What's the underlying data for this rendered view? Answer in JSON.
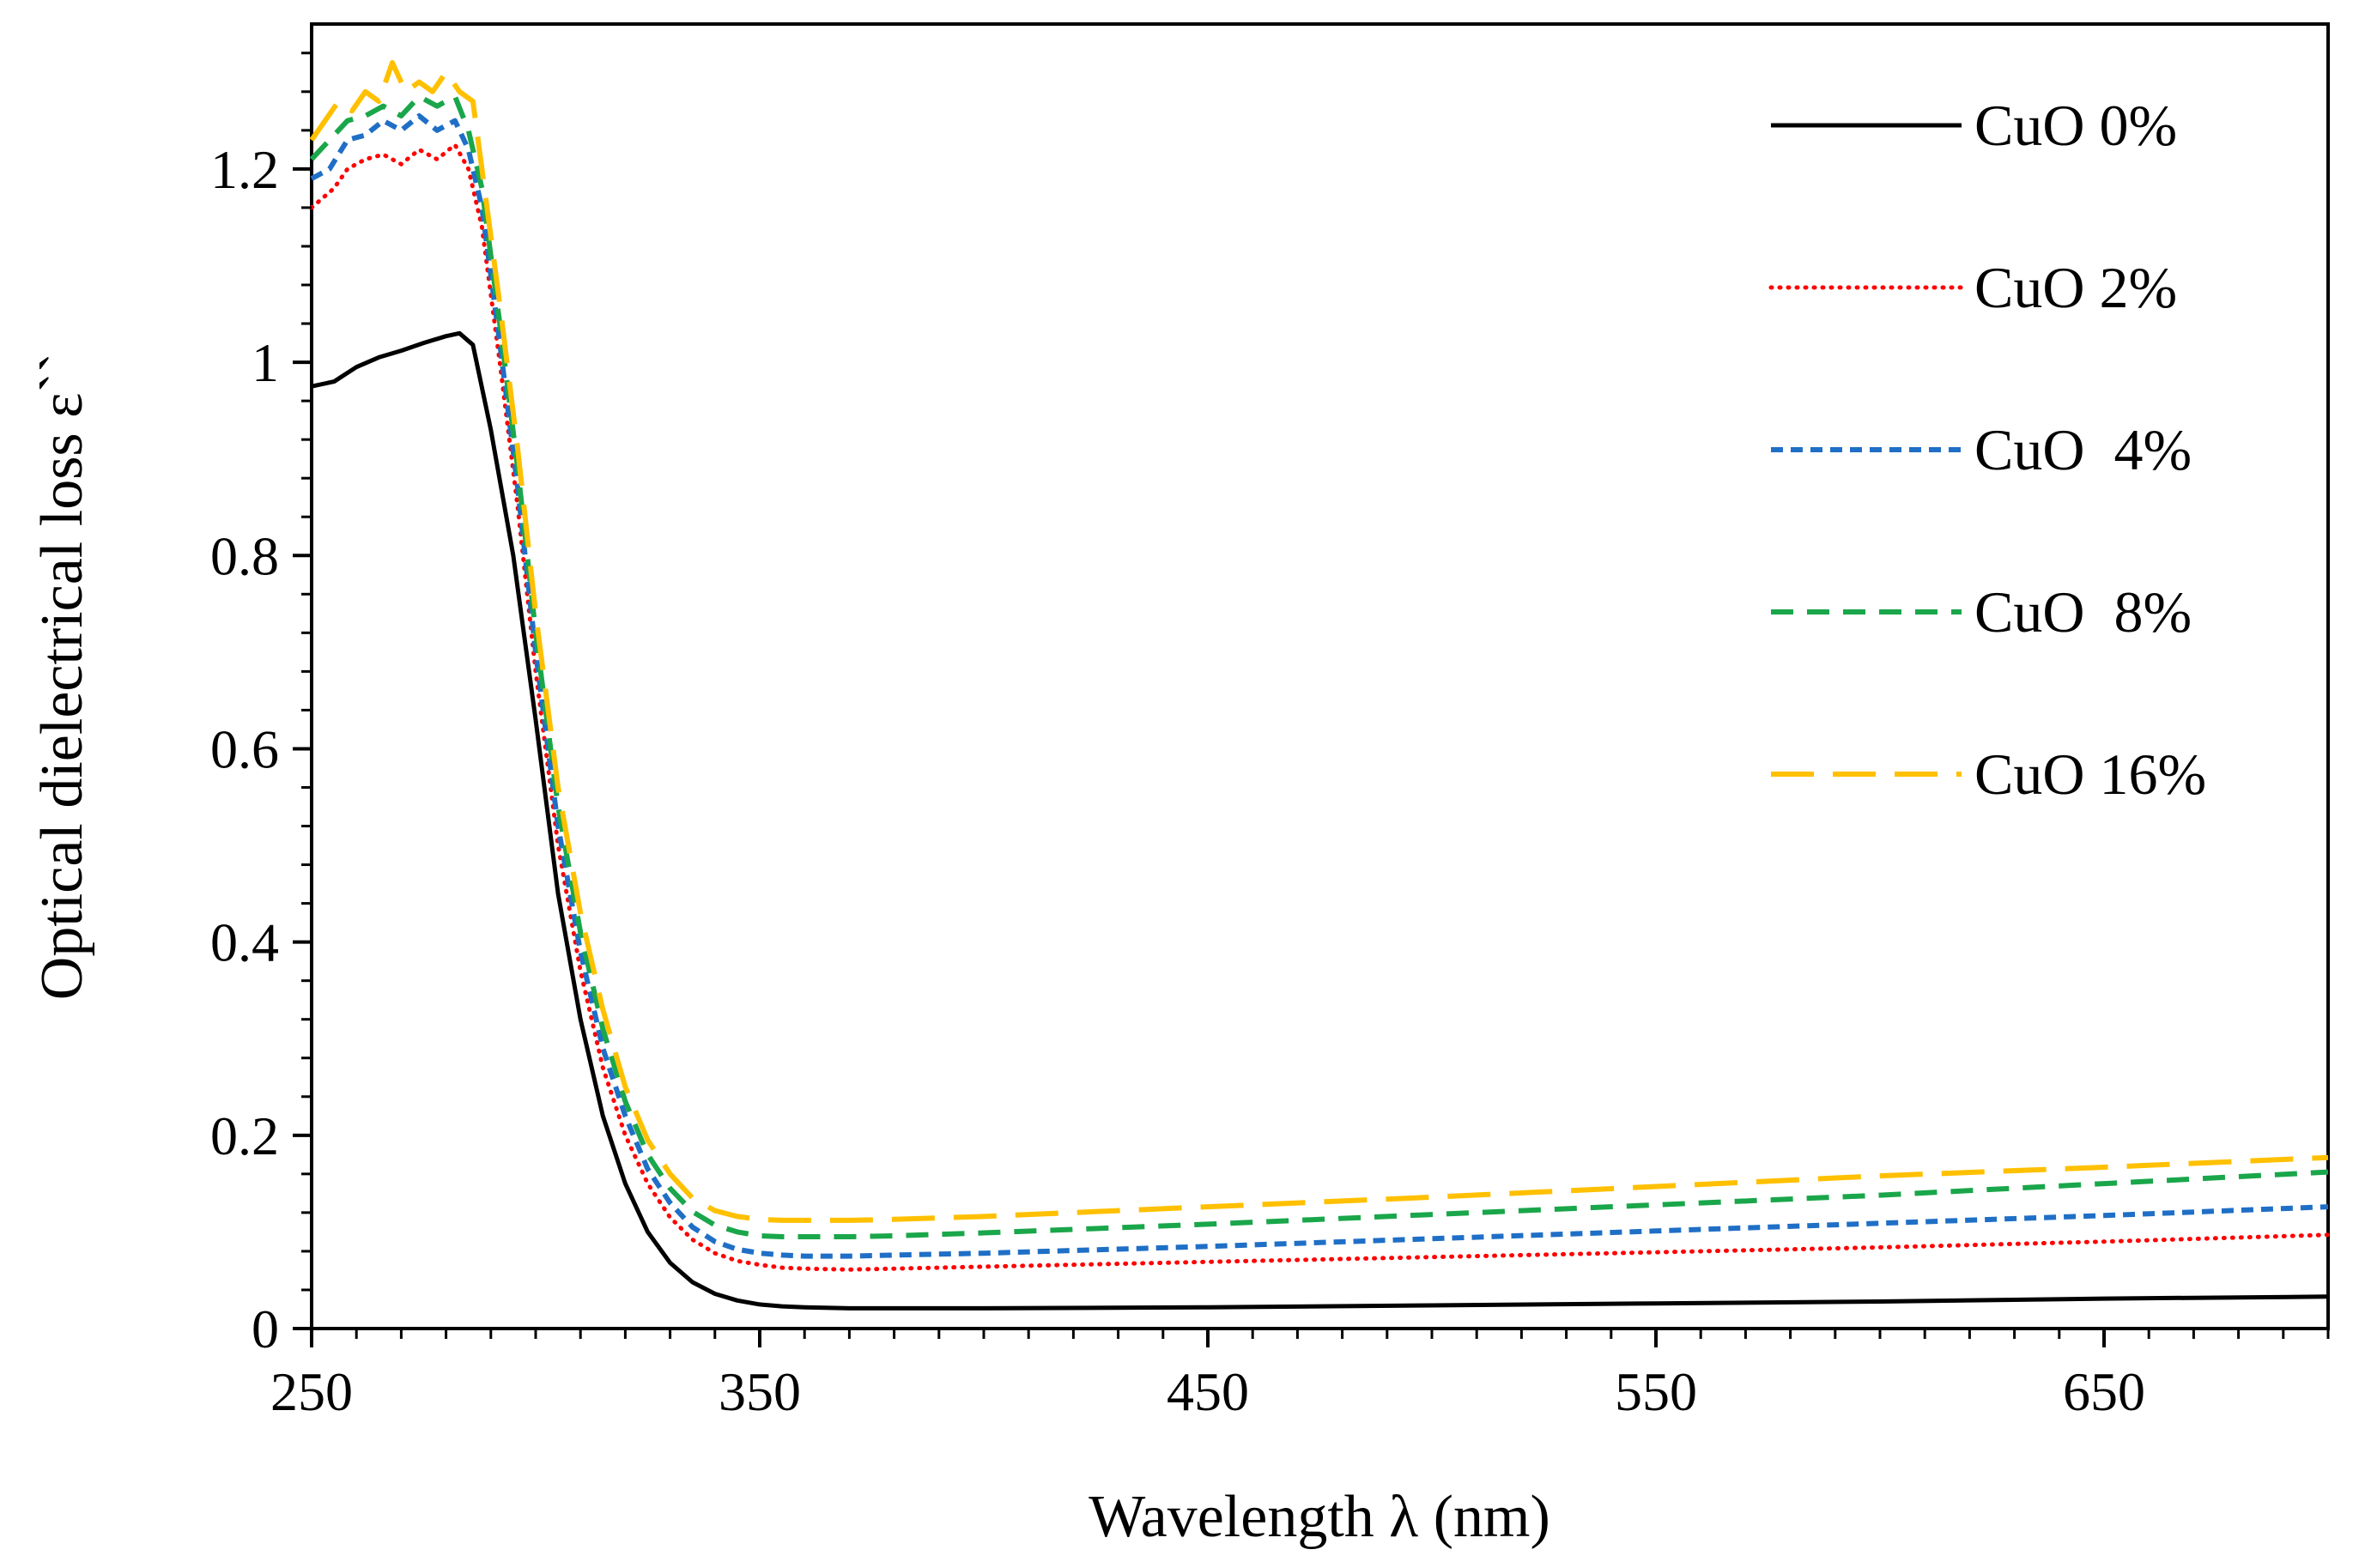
{
  "chart_data": {
    "type": "line",
    "title": "",
    "xlabel": "Wavelength λ (nm)",
    "ylabel": "Optical dielectrical loss   ε``",
    "xlim": [
      250,
      700
    ],
    "ylim": [
      0,
      1.35
    ],
    "xticks": [
      250,
      350,
      450,
      550,
      650
    ],
    "xtick_labels": [
      "250",
      "350",
      "450",
      "550",
      "650"
    ],
    "yticks": [
      0,
      0.2,
      0.4,
      0.6,
      0.8,
      1.0,
      1.2
    ],
    "ytick_labels": [
      "0",
      "0.2",
      "0.4",
      "0.6",
      "0.8",
      "1",
      "1.2"
    ],
    "grid": false,
    "legend_position": "top-right",
    "series": [
      {
        "name": "CuO 0%",
        "color": "#000000",
        "dash": "solid",
        "x": [
          250,
          255,
          260,
          265,
          270,
          275,
          280,
          283,
          286,
          290,
          295,
          300,
          305,
          310,
          315,
          320,
          325,
          330,
          335,
          340,
          345,
          350,
          355,
          360,
          370,
          380,
          400,
          450,
          500,
          550,
          600,
          650,
          700
        ],
        "y": [
          0.975,
          0.98,
          0.995,
          1.005,
          1.012,
          1.02,
          1.027,
          1.03,
          1.018,
          0.93,
          0.8,
          0.63,
          0.45,
          0.32,
          0.22,
          0.15,
          0.1,
          0.068,
          0.048,
          0.036,
          0.029,
          0.025,
          0.023,
          0.022,
          0.021,
          0.021,
          0.021,
          0.022,
          0.024,
          0.026,
          0.028,
          0.031,
          0.033
        ]
      },
      {
        "name": "CuO 2%",
        "color": "#ff0000",
        "dash": "dotted",
        "x": [
          250,
          255,
          258,
          262,
          266,
          270,
          274,
          278,
          282,
          285,
          288,
          292,
          296,
          300,
          305,
          310,
          315,
          320,
          325,
          330,
          335,
          340,
          345,
          350,
          355,
          360,
          370,
          380,
          400,
          450,
          500,
          550,
          600,
          650,
          700
        ],
        "y": [
          1.16,
          1.18,
          1.2,
          1.21,
          1.215,
          1.205,
          1.22,
          1.21,
          1.225,
          1.2,
          1.14,
          1.0,
          0.85,
          0.68,
          0.5,
          0.37,
          0.27,
          0.2,
          0.15,
          0.115,
          0.092,
          0.078,
          0.07,
          0.066,
          0.063,
          0.062,
          0.061,
          0.062,
          0.064,
          0.069,
          0.074,
          0.079,
          0.084,
          0.09,
          0.097
        ]
      },
      {
        "name": "CuO  4%",
        "color": "#1f6fc6",
        "dash": "dashed-short",
        "x": [
          250,
          254,
          258,
          262,
          266,
          270,
          274,
          278,
          282,
          285,
          288,
          292,
          296,
          300,
          305,
          310,
          315,
          320,
          325,
          330,
          335,
          340,
          345,
          350,
          355,
          360,
          370,
          380,
          400,
          450,
          500,
          550,
          600,
          650,
          700
        ],
        "y": [
          1.19,
          1.2,
          1.23,
          1.235,
          1.25,
          1.24,
          1.255,
          1.24,
          1.25,
          1.22,
          1.16,
          1.02,
          0.87,
          0.7,
          0.52,
          0.39,
          0.29,
          0.22,
          0.165,
          0.13,
          0.105,
          0.09,
          0.082,
          0.078,
          0.076,
          0.075,
          0.075,
          0.076,
          0.078,
          0.085,
          0.093,
          0.101,
          0.109,
          0.117,
          0.126
        ]
      },
      {
        "name": "CuO  8%",
        "color": "#1aa64a",
        "dash": "dashed",
        "x": [
          250,
          254,
          258,
          262,
          266,
          270,
          274,
          278,
          282,
          285,
          288,
          292,
          296,
          300,
          305,
          310,
          315,
          320,
          325,
          330,
          335,
          340,
          345,
          350,
          355,
          360,
          370,
          380,
          400,
          450,
          500,
          550,
          600,
          650,
          700
        ],
        "y": [
          1.21,
          1.23,
          1.25,
          1.255,
          1.265,
          1.255,
          1.275,
          1.265,
          1.275,
          1.24,
          1.18,
          1.04,
          0.89,
          0.72,
          0.54,
          0.41,
          0.31,
          0.235,
          0.18,
          0.145,
          0.121,
          0.107,
          0.1,
          0.096,
          0.095,
          0.095,
          0.095,
          0.096,
          0.099,
          0.108,
          0.118,
          0.128,
          0.138,
          0.15,
          0.162
        ]
      },
      {
        "name": "CuO 16%",
        "color": "#ffc000",
        "dash": "long-dash",
        "x": [
          250,
          253,
          256,
          259,
          262,
          265,
          268,
          271,
          274,
          277,
          280,
          283,
          286,
          288,
          292,
          296,
          300,
          305,
          310,
          315,
          320,
          325,
          330,
          335,
          340,
          345,
          350,
          355,
          360,
          370,
          380,
          400,
          450,
          500,
          550,
          600,
          650,
          700
        ],
        "y": [
          1.23,
          1.25,
          1.27,
          1.26,
          1.28,
          1.27,
          1.31,
          1.28,
          1.29,
          1.28,
          1.3,
          1.28,
          1.27,
          1.2,
          1.06,
          0.91,
          0.74,
          0.56,
          0.43,
          0.33,
          0.25,
          0.195,
          0.16,
          0.135,
          0.122,
          0.116,
          0.113,
          0.112,
          0.112,
          0.112,
          0.113,
          0.116,
          0.126,
          0.136,
          0.147,
          0.158,
          0.167,
          0.177
        ]
      }
    ]
  }
}
